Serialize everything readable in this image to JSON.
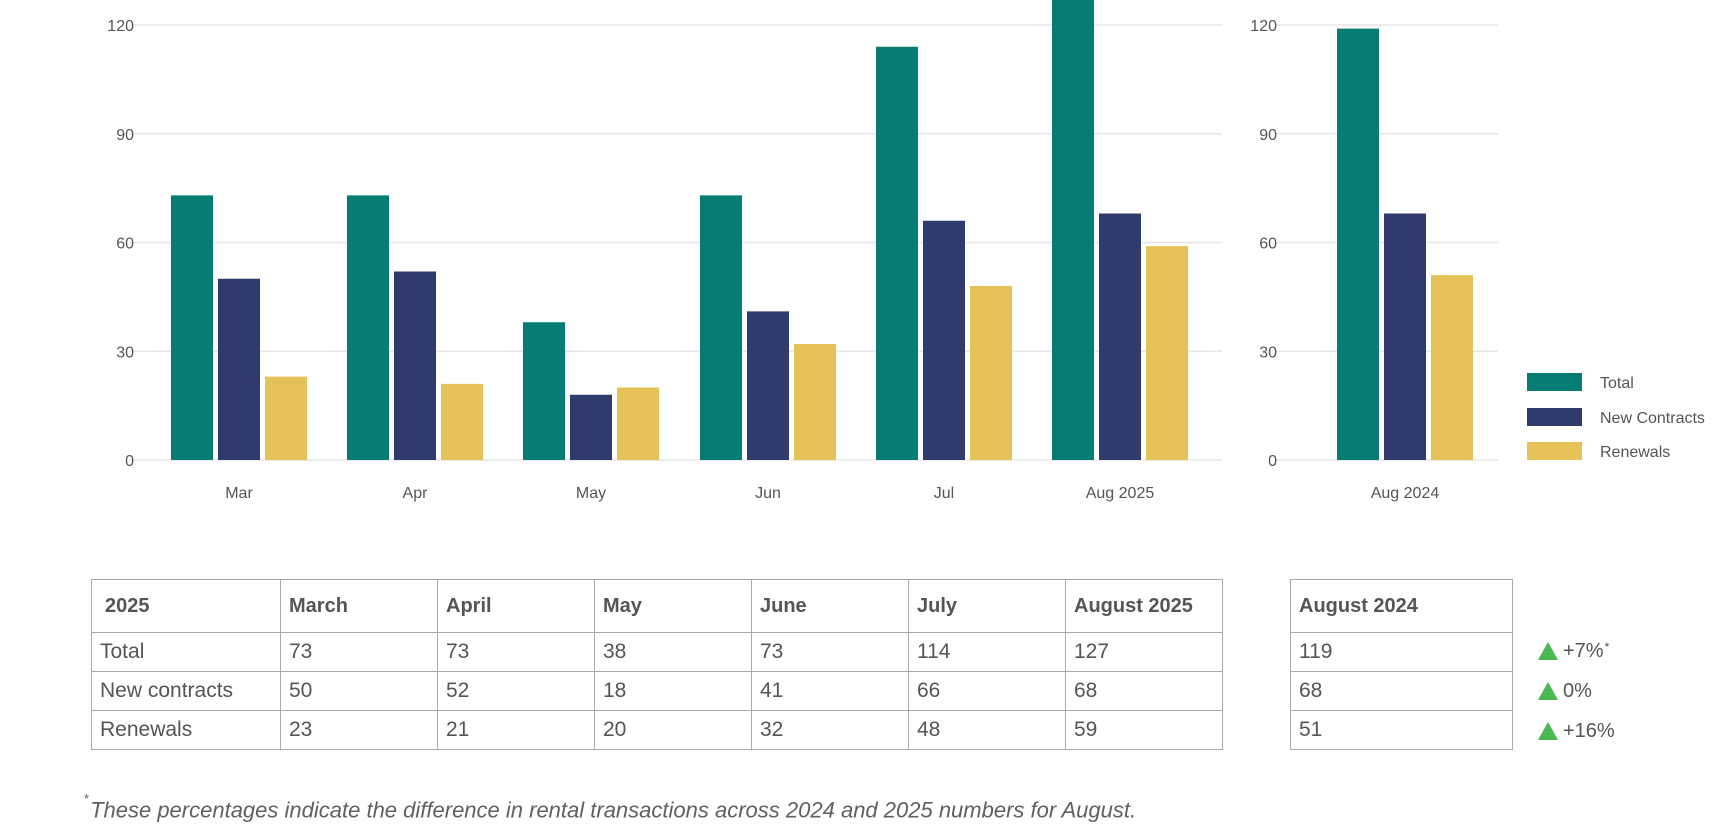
{
  "colors": {
    "total": "#077c75",
    "new_contracts": "#303a6b",
    "renewals": "#e4c258",
    "grid": "#e6e6e6",
    "axis_text": "#555555",
    "up_arrow": "#4cb853"
  },
  "chart_data": [
    {
      "type": "bar",
      "categories": [
        "Mar",
        "Apr",
        "May",
        "Jun",
        "Jul",
        "Aug 2025"
      ],
      "series": [
        {
          "name": "Total",
          "values": [
            73,
            73,
            38,
            73,
            114,
            127
          ]
        },
        {
          "name": "New Contracts",
          "values": [
            50,
            52,
            18,
            41,
            66,
            68
          ]
        },
        {
          "name": "Renewals",
          "values": [
            23,
            21,
            20,
            32,
            48,
            59
          ]
        }
      ],
      "yticks": [
        0,
        30,
        60,
        90,
        120
      ],
      "ylim": [
        0,
        127
      ],
      "grid": true
    },
    {
      "type": "bar",
      "categories": [
        "Aug 2024"
      ],
      "series": [
        {
          "name": "Total",
          "values": [
            119
          ]
        },
        {
          "name": "New Contracts",
          "values": [
            68
          ]
        },
        {
          "name": "Renewals",
          "values": [
            51
          ]
        }
      ],
      "yticks": [
        0,
        30,
        60,
        90,
        120
      ],
      "ylim": [
        0,
        127
      ],
      "grid": true,
      "legend": "right"
    }
  ],
  "table_2025": {
    "headers": [
      "2025",
      "March",
      "April",
      "May",
      "June",
      "July",
      "August 2025"
    ],
    "rows": [
      [
        "Total",
        "73",
        "73",
        "38",
        "73",
        "114",
        "127"
      ],
      [
        "New contracts",
        "50",
        "52",
        "18",
        "41",
        "66",
        "68"
      ],
      [
        "Renewals",
        "23",
        "21",
        "20",
        "32",
        "48",
        "59"
      ]
    ]
  },
  "table_2024": {
    "header": "August 2024",
    "values": [
      "119",
      "68",
      "51"
    ]
  },
  "changes": [
    {
      "text": "+7%",
      "mark": "*"
    },
    {
      "text": "0%",
      "mark": ""
    },
    {
      "text": "+16%",
      "mark": ""
    }
  ],
  "footnote": {
    "mark": "*",
    "text": "These percentages indicate the difference in rental transactions across 2024 and 2025 numbers for August."
  }
}
